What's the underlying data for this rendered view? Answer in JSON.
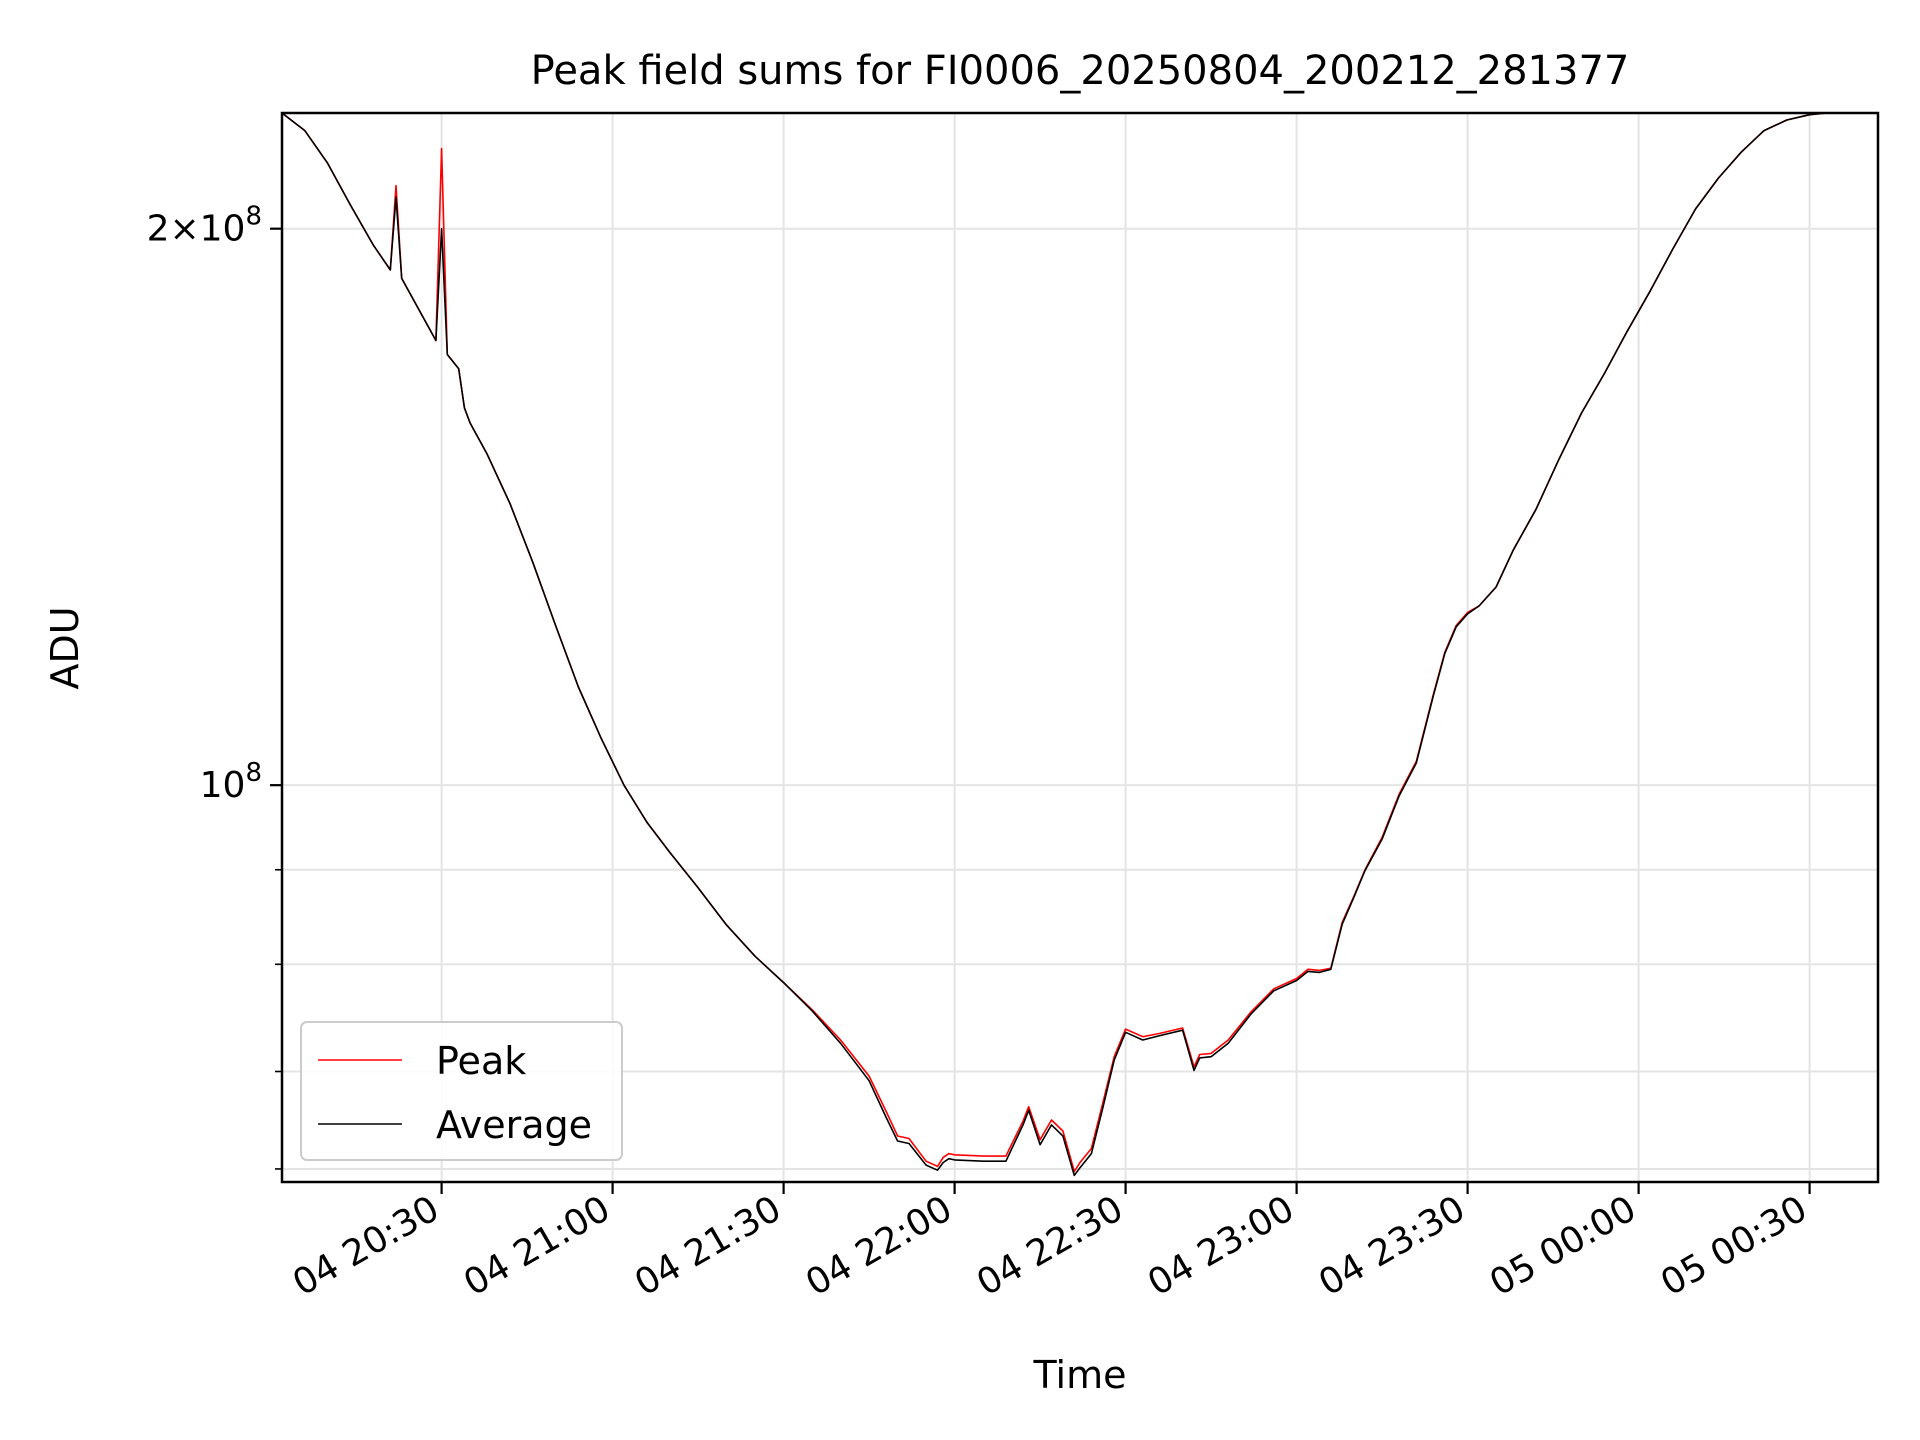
{
  "chart_data": {
    "type": "line",
    "title": "Peak field sums for FI0006_20250804_200212_281377",
    "xlabel": "Time",
    "ylabel": "ADU",
    "yscale": "log",
    "grid": true,
    "legend_position": "lower-left",
    "xlim": [
      "2025-08-04 20:02",
      "2025-08-05 00:42"
    ],
    "ylim": [
      61000000,
      231000000
    ],
    "x_ticks": [
      "04 20:30",
      "04 21:00",
      "04 21:30",
      "04 22:00",
      "04 22:30",
      "04 23:00",
      "04 23:30",
      "05 00:00",
      "05 00:30"
    ],
    "y_ticks": [
      {
        "value": 100000000,
        "base": "10",
        "exp": "8",
        "mult": ""
      },
      {
        "value": 200000000,
        "base": "10",
        "exp": "8",
        "mult": "2×"
      }
    ],
    "y_minor_ticks": [
      62000000,
      70000000,
      80000000,
      90000000,
      300000000
    ],
    "series": [
      {
        "name": "Peak",
        "color": "#ff0000",
        "x": [
          "2025-08-04 20:02",
          "2025-08-04 20:06",
          "2025-08-04 20:10",
          "2025-08-04 20:14",
          "2025-08-04 20:18",
          "2025-08-04 20:21",
          "2025-08-04 20:22",
          "2025-08-04 20:23",
          "2025-08-04 20:29",
          "2025-08-04 20:30",
          "2025-08-04 20:31",
          "2025-08-04 20:33",
          "2025-08-04 20:34",
          "2025-08-04 20:35",
          "2025-08-04 20:38",
          "2025-08-04 20:42",
          "2025-08-04 20:46",
          "2025-08-04 20:50",
          "2025-08-04 20:54",
          "2025-08-04 20:58",
          "2025-08-04 21:02",
          "2025-08-04 21:06",
          "2025-08-04 21:10",
          "2025-08-04 21:15",
          "2025-08-04 21:20",
          "2025-08-04 21:25",
          "2025-08-04 21:30",
          "2025-08-04 21:35",
          "2025-08-04 21:40",
          "2025-08-04 21:45",
          "2025-08-04 21:48",
          "2025-08-04 21:50",
          "2025-08-04 21:52",
          "2025-08-04 21:55",
          "2025-08-04 21:57",
          "2025-08-04 21:58",
          "2025-08-04 21:59",
          "2025-08-04 22:00",
          "2025-08-04 22:05",
          "2025-08-04 22:09",
          "2025-08-04 22:12",
          "2025-08-04 22:13",
          "2025-08-04 22:15",
          "2025-08-04 22:17",
          "2025-08-04 22:19",
          "2025-08-04 22:21",
          "2025-08-04 22:22",
          "2025-08-04 22:24",
          "2025-08-04 22:26",
          "2025-08-04 22:28",
          "2025-08-04 22:30",
          "2025-08-04 22:33",
          "2025-08-04 22:36",
          "2025-08-04 22:40",
          "2025-08-04 22:42",
          "2025-08-04 22:43",
          "2025-08-04 22:45",
          "2025-08-04 22:48",
          "2025-08-04 22:52",
          "2025-08-04 22:56",
          "2025-08-04 23:00",
          "2025-08-04 23:02",
          "2025-08-04 23:04",
          "2025-08-04 23:06",
          "2025-08-04 23:08",
          "2025-08-04 23:10",
          "2025-08-04 23:12",
          "2025-08-04 23:15",
          "2025-08-04 23:18",
          "2025-08-04 23:21",
          "2025-08-04 23:24",
          "2025-08-04 23:26",
          "2025-08-04 23:28",
          "2025-08-04 23:30",
          "2025-08-04 23:32",
          "2025-08-04 23:35",
          "2025-08-04 23:38",
          "2025-08-04 23:42",
          "2025-08-04 23:46",
          "2025-08-04 23:50",
          "2025-08-04 23:54",
          "2025-08-04 23:58",
          "2025-08-05 00:02",
          "2025-08-05 00:06",
          "2025-08-05 00:10",
          "2025-08-05 00:14",
          "2025-08-05 00:18",
          "2025-08-05 00:22",
          "2025-08-05 00:26",
          "2025-08-05 00:30",
          "2025-08-05 00:33",
          "2025-08-05 00:36",
          "2025-08-05 00:39",
          "2025-08-05 00:42"
        ],
        "y": [
          231000000,
          226000000,
          217000000,
          206000000,
          196000000,
          190000000,
          211000000,
          188000000,
          174000000,
          221000000,
          171000000,
          168000000,
          160000000,
          157000000,
          151000000,
          142000000,
          132000000,
          122000000,
          113000000,
          106000000,
          100000000,
          95500000,
          92000000,
          88000000,
          84000000,
          80800000,
          78200000,
          75600000,
          72800000,
          69600000,
          66600000,
          64600000,
          64400000,
          62600000,
          62200000,
          62900000,
          63200000,
          63100000,
          63000000,
          63000000,
          65800000,
          67000000,
          64300000,
          65900000,
          65000000,
          61800000,
          62500000,
          63600000,
          67300000,
          71300000,
          73800000,
          73100000,
          73400000,
          73900000,
          70400000,
          71500000,
          71600000,
          72800000,
          75400000,
          77600000,
          78600000,
          79500000,
          79400000,
          79600000,
          84300000,
          87000000,
          90000000,
          93700000,
          98900000,
          103000000,
          112000000,
          118000000,
          122000000,
          124000000,
          125000000,
          128000000,
          134000000,
          141000000,
          150000000,
          159000000,
          167000000,
          176000000,
          185000000,
          195000000,
          205000000,
          213000000,
          220000000,
          226000000,
          229000000,
          230500000,
          231000000,
          231000000,
          231000000,
          231000000
        ]
      },
      {
        "name": "Average",
        "color": "#000000",
        "x": [
          "2025-08-04 20:02",
          "2025-08-04 20:06",
          "2025-08-04 20:10",
          "2025-08-04 20:14",
          "2025-08-04 20:18",
          "2025-08-04 20:21",
          "2025-08-04 20:22",
          "2025-08-04 20:23",
          "2025-08-04 20:29",
          "2025-08-04 20:30",
          "2025-08-04 20:31",
          "2025-08-04 20:33",
          "2025-08-04 20:34",
          "2025-08-04 20:35",
          "2025-08-04 20:38",
          "2025-08-04 20:42",
          "2025-08-04 20:46",
          "2025-08-04 20:50",
          "2025-08-04 20:54",
          "2025-08-04 20:58",
          "2025-08-04 21:02",
          "2025-08-04 21:06",
          "2025-08-04 21:10",
          "2025-08-04 21:15",
          "2025-08-04 21:20",
          "2025-08-04 21:25",
          "2025-08-04 21:30",
          "2025-08-04 21:35",
          "2025-08-04 21:40",
          "2025-08-04 21:45",
          "2025-08-04 21:48",
          "2025-08-04 21:50",
          "2025-08-04 21:52",
          "2025-08-04 21:55",
          "2025-08-04 21:57",
          "2025-08-04 21:58",
          "2025-08-04 21:59",
          "2025-08-04 22:00",
          "2025-08-04 22:05",
          "2025-08-04 22:09",
          "2025-08-04 22:12",
          "2025-08-04 22:13",
          "2025-08-04 22:15",
          "2025-08-04 22:17",
          "2025-08-04 22:19",
          "2025-08-04 22:21",
          "2025-08-04 22:22",
          "2025-08-04 22:24",
          "2025-08-04 22:26",
          "2025-08-04 22:28",
          "2025-08-04 22:30",
          "2025-08-04 22:33",
          "2025-08-04 22:36",
          "2025-08-04 22:40",
          "2025-08-04 22:42",
          "2025-08-04 22:43",
          "2025-08-04 22:45",
          "2025-08-04 22:48",
          "2025-08-04 22:52",
          "2025-08-04 22:56",
          "2025-08-04 23:00",
          "2025-08-04 23:02",
          "2025-08-04 23:04",
          "2025-08-04 23:06",
          "2025-08-04 23:08",
          "2025-08-04 23:10",
          "2025-08-04 23:12",
          "2025-08-04 23:15",
          "2025-08-04 23:18",
          "2025-08-04 23:21",
          "2025-08-04 23:24",
          "2025-08-04 23:26",
          "2025-08-04 23:28",
          "2025-08-04 23:30",
          "2025-08-04 23:32",
          "2025-08-04 23:35",
          "2025-08-04 23:38",
          "2025-08-04 23:42",
          "2025-08-04 23:46",
          "2025-08-04 23:50",
          "2025-08-04 23:54",
          "2025-08-04 23:58",
          "2025-08-05 00:02",
          "2025-08-05 00:06",
          "2025-08-05 00:10",
          "2025-08-05 00:14",
          "2025-08-05 00:18",
          "2025-08-05 00:22",
          "2025-08-05 00:26",
          "2025-08-05 00:30",
          "2025-08-05 00:33",
          "2025-08-05 00:36",
          "2025-08-05 00:39",
          "2025-08-05 00:42"
        ],
        "y": [
          231000000,
          226000000,
          217000000,
          206000000,
          196000000,
          190000000,
          208000000,
          188000000,
          174000000,
          200000000,
          171000000,
          168000000,
          160000000,
          157000000,
          151000000,
          142000000,
          132000000,
          122000000,
          113000000,
          106000000,
          100000000,
          95500000,
          92000000,
          88000000,
          84000000,
          80800000,
          78200000,
          75500000,
          72500000,
          69200000,
          66100000,
          64200000,
          64000000,
          62300000,
          61900000,
          62500000,
          62800000,
          62700000,
          62600000,
          62600000,
          65500000,
          66700000,
          63900000,
          65500000,
          64600000,
          61500000,
          62100000,
          63200000,
          66900000,
          71000000,
          73500000,
          72800000,
          73200000,
          73700000,
          70100000,
          71200000,
          71300000,
          72500000,
          75200000,
          77400000,
          78400000,
          79300000,
          79200000,
          79500000,
          84100000,
          86900000,
          89900000,
          93500000,
          98700000,
          102800000,
          111800000,
          117800000,
          121800000,
          123800000,
          125000000,
          128000000,
          134000000,
          141000000,
          150000000,
          159000000,
          167000000,
          176000000,
          185000000,
          195000000,
          205000000,
          213000000,
          220000000,
          226000000,
          229000000,
          230500000,
          231000000,
          231000000,
          231000000,
          231000000
        ]
      }
    ]
  }
}
